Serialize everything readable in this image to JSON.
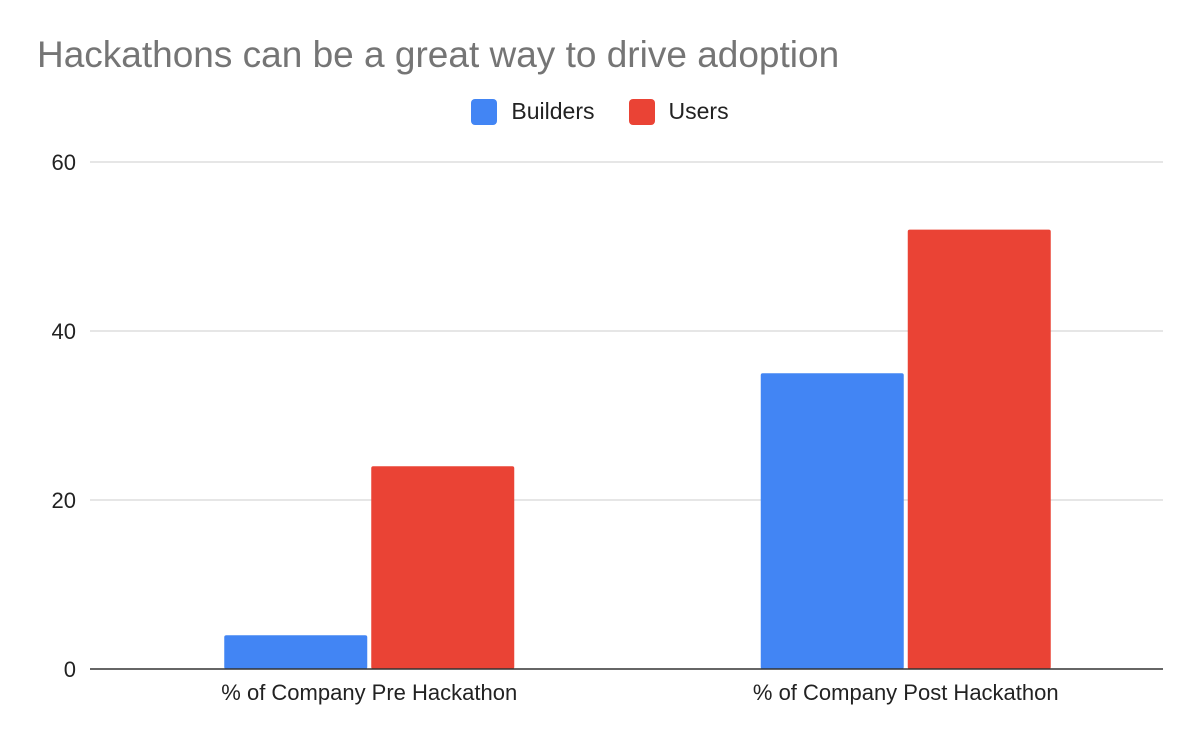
{
  "chart_data": {
    "type": "bar",
    "title": "Hackathons can be a great way to drive adoption",
    "categories": [
      "% of Company Pre Hackathon",
      "% of Company Post Hackathon"
    ],
    "series": [
      {
        "name": "Builders",
        "color": "#4285F4",
        "values": [
          4,
          35
        ]
      },
      {
        "name": "Users",
        "color": "#EA4335",
        "values": [
          24,
          52
        ]
      }
    ],
    "yticks": [
      0,
      20,
      40,
      60
    ],
    "ylim": [
      0,
      60
    ],
    "grid": true,
    "legend_position": "top-center",
    "xlabel": "",
    "ylabel": ""
  }
}
